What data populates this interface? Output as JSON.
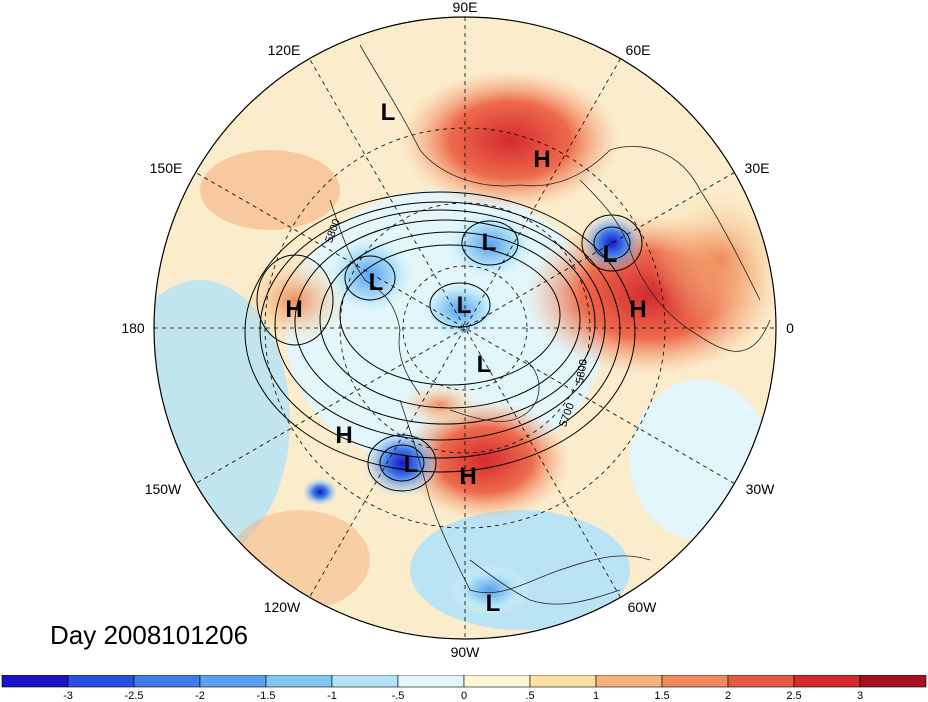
{
  "title": "Day 2008101206",
  "longitude_labels": [
    {
      "text": "90E"
    },
    {
      "text": "60E"
    },
    {
      "text": "30E"
    },
    {
      "text": "0"
    },
    {
      "text": "30W"
    },
    {
      "text": "60W"
    },
    {
      "text": "90W"
    },
    {
      "text": "120W"
    },
    {
      "text": "150W"
    },
    {
      "text": "180"
    },
    {
      "text": "150E"
    },
    {
      "text": "120E"
    }
  ],
  "pressure_systems": [
    {
      "type": "L"
    },
    {
      "type": "H"
    },
    {
      "type": "L"
    },
    {
      "type": "L"
    },
    {
      "type": "H"
    },
    {
      "type": "L"
    },
    {
      "type": "H"
    },
    {
      "type": "L"
    },
    {
      "type": "L"
    },
    {
      "type": "H"
    },
    {
      "type": "L"
    },
    {
      "type": "H"
    },
    {
      "type": "L"
    }
  ],
  "contour_labels": [
    "5800",
    "5800",
    "5700"
  ],
  "colorbar": {
    "ticks": [
      "-3",
      "-2.5",
      "-2",
      "-1.5",
      "-1",
      "-.5",
      "0",
      ".5",
      "1",
      "1.5",
      "2",
      "2.5",
      "3"
    ],
    "colors": [
      "#1a14c8",
      "#2a4fe0",
      "#3f7ce8",
      "#5aa0ee",
      "#82c6f2",
      "#b3e3f7",
      "#e3f6fb",
      "#fff7d6",
      "#fbe1a4",
      "#f6b27e",
      "#f08a5c",
      "#e75840",
      "#d42a2e",
      "#a8101f"
    ]
  }
}
